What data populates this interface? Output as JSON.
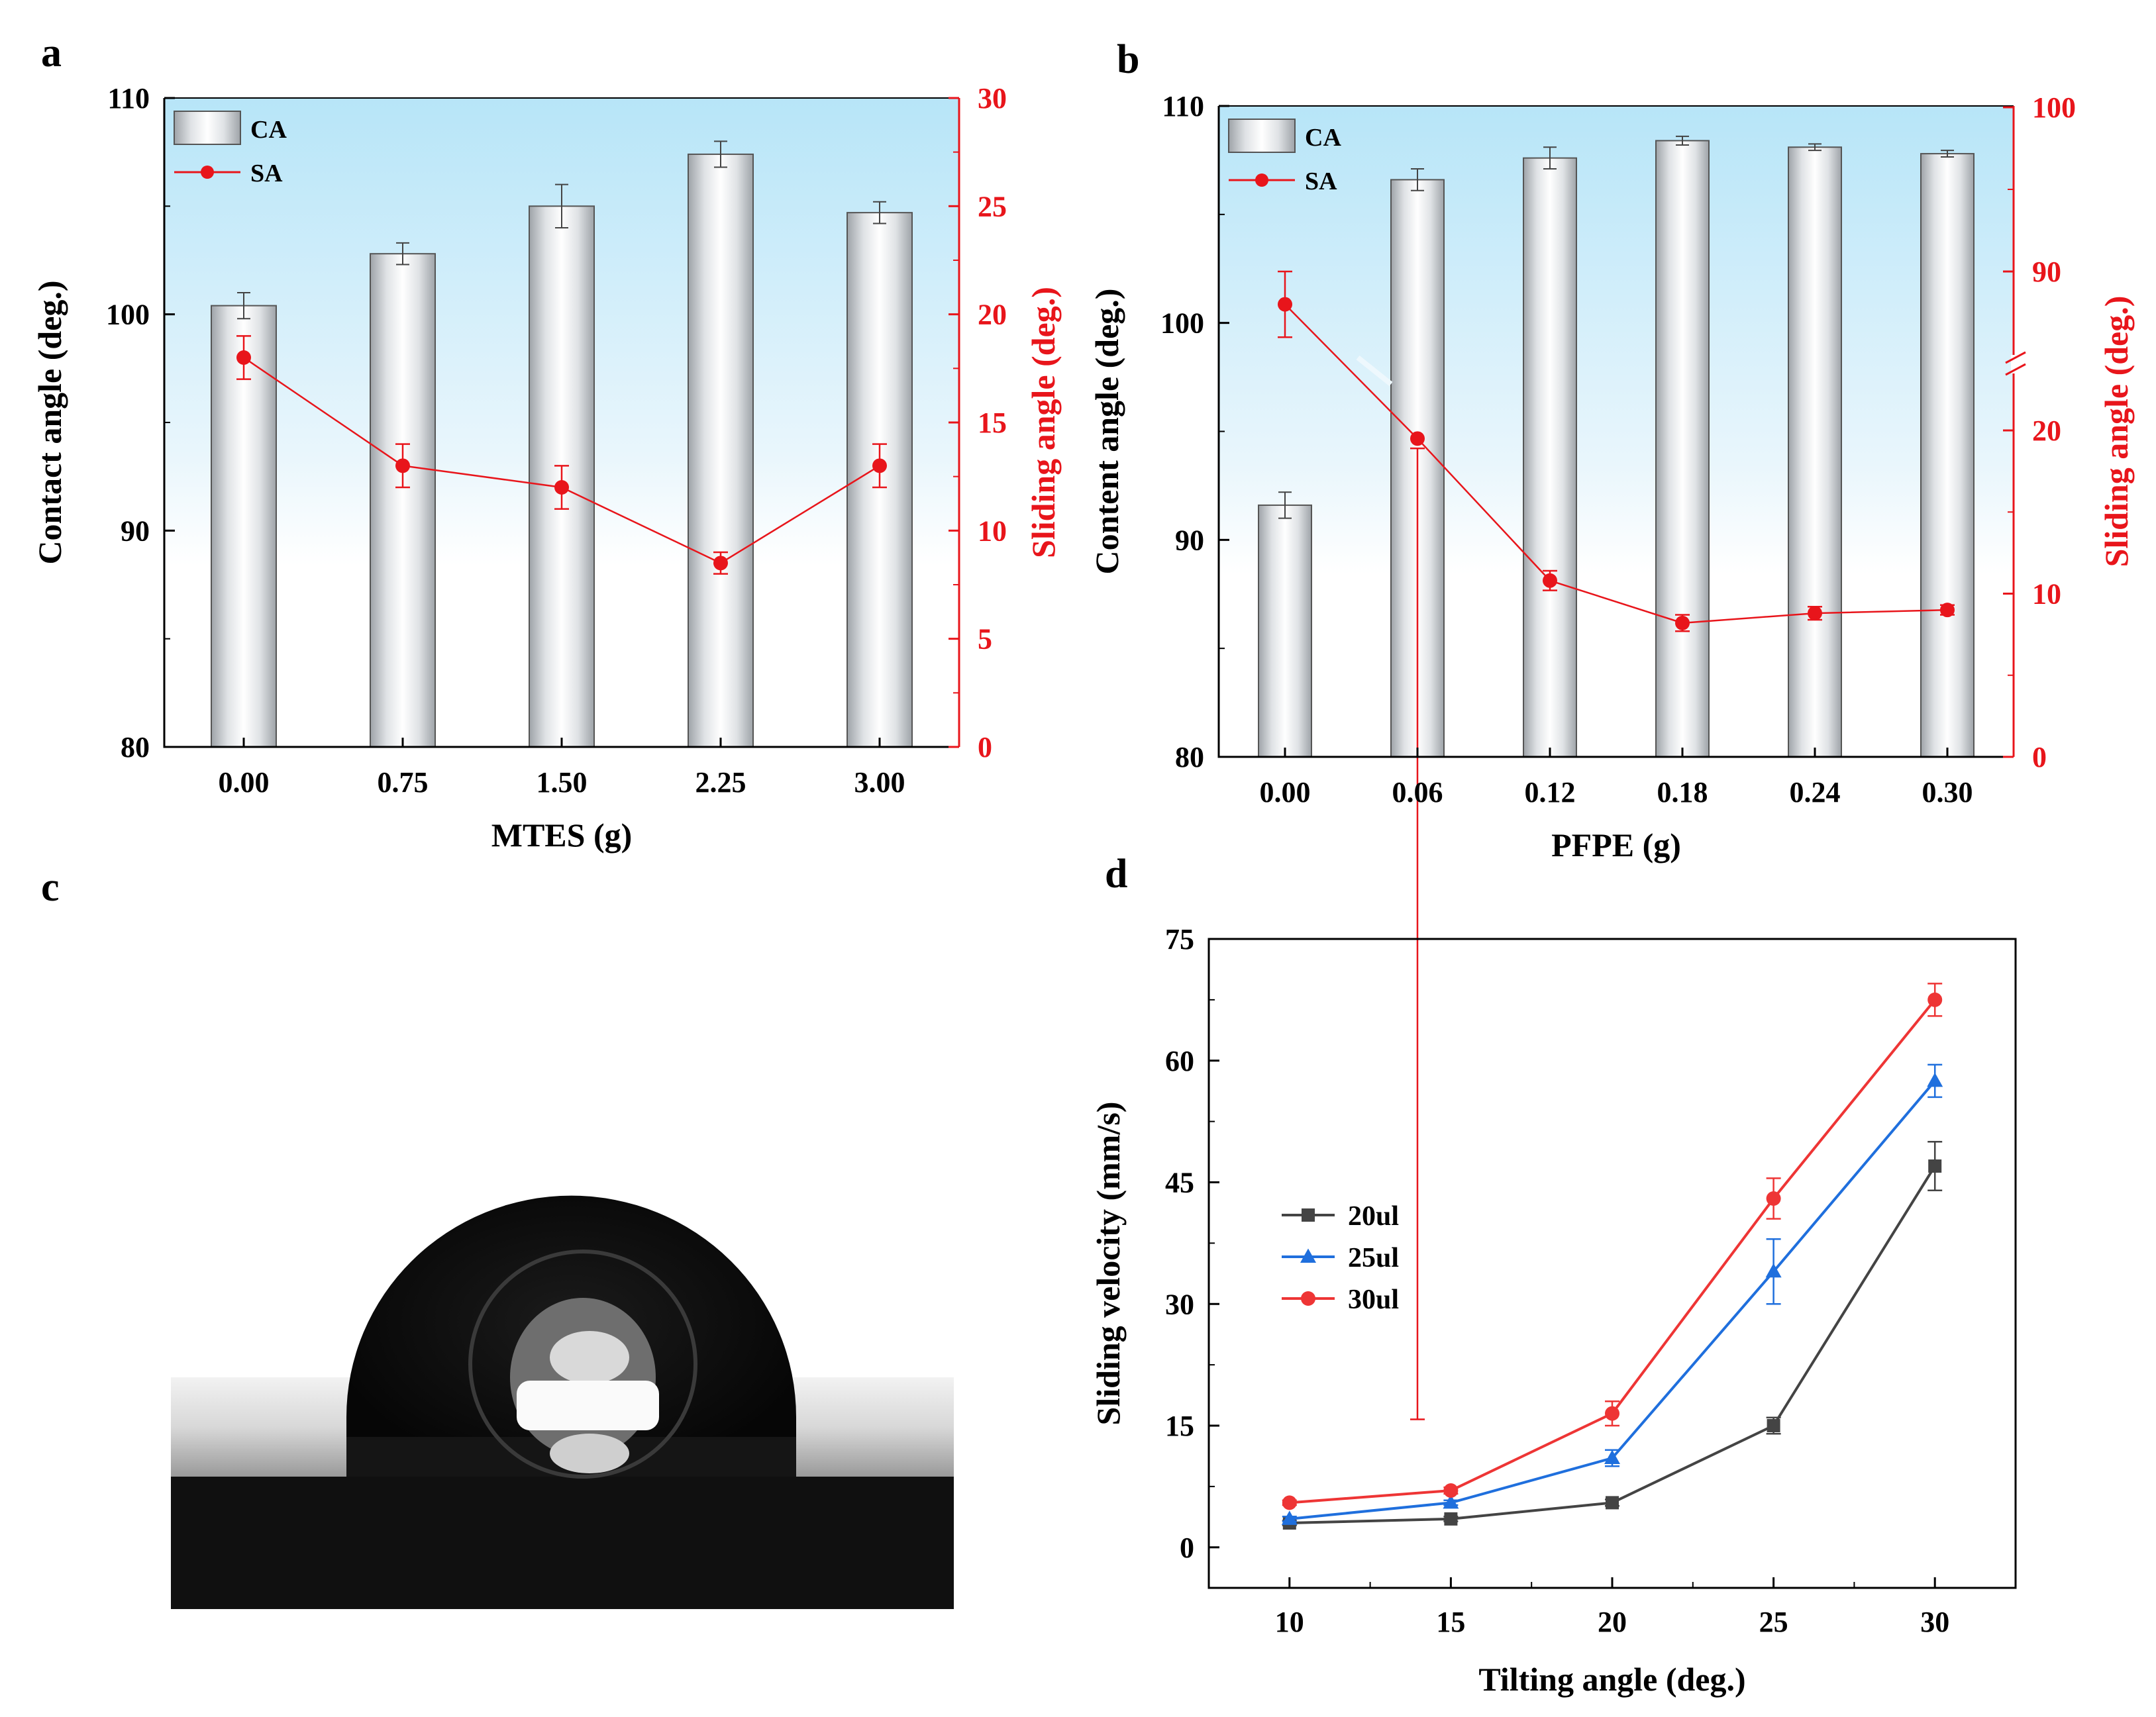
{
  "colors": {
    "ca_bar": "#d9dcdf",
    "sa_line": "#e8151b",
    "bg_top": "#b9e6f8",
    "series_20ul": "#444444",
    "series_25ul": "#1f6fdd",
    "series_30ul": "#ee3535"
  },
  "chart_data": [
    {
      "panel_label": "a",
      "type": "bar",
      "secondary_type": "line",
      "background": "light-blue-to-white gradient",
      "xlabel": "MTES (g)",
      "ylabel": "Contact angle (deg.)",
      "ylabel_right": "Sliding angle (deg.)",
      "categories": [
        "0.00",
        "0.75",
        "1.50",
        "2.25",
        "3.00"
      ],
      "ylim": [
        80,
        110
      ],
      "yticks": [
        "80",
        "90",
        "100",
        "110"
      ],
      "ylim_right": [
        0,
        30
      ],
      "yticks_right": [
        "0",
        "5",
        "10",
        "15",
        "20",
        "25",
        "30"
      ],
      "legend_position": "top-left",
      "series": [
        {
          "name": "CA",
          "axis": "left",
          "type": "bar",
          "values": [
            100.4,
            102.8,
            105.0,
            107.4,
            104.7
          ],
          "errors": [
            0.6,
            0.5,
            1.0,
            0.6,
            0.5
          ]
        },
        {
          "name": "SA",
          "axis": "right",
          "type": "line",
          "values": [
            18.0,
            13.0,
            12.0,
            8.5,
            13.0
          ],
          "errors": [
            1.0,
            1.0,
            1.0,
            0.5,
            1.0
          ]
        }
      ]
    },
    {
      "panel_label": "b",
      "type": "bar",
      "secondary_type": "line",
      "background": "light-blue-to-white gradient",
      "xlabel": "PFPE (g)",
      "ylabel": "Content angle (deg.)",
      "ylabel_right": "Sliding angle (deg.)",
      "categories": [
        "0.00",
        "0.06",
        "0.12",
        "0.18",
        "0.24",
        "0.30"
      ],
      "ylim": [
        80,
        110
      ],
      "yticks": [
        "80",
        "90",
        "100",
        "110"
      ],
      "right_axis_broken": true,
      "yticks_right": [
        "0",
        "10",
        "20",
        "90",
        "100"
      ],
      "legend_position": "top-left",
      "series": [
        {
          "name": "CA",
          "axis": "left",
          "type": "bar",
          "values": [
            91.6,
            106.6,
            107.6,
            108.4,
            108.1,
            107.8
          ],
          "errors": [
            0.6,
            0.5,
            0.5,
            0.2,
            0.15,
            0.15
          ]
        },
        {
          "name": "SA",
          "axis": "right",
          "type": "line",
          "values": [
            88.0,
            19.5,
            10.8,
            8.2,
            8.8,
            9.0
          ],
          "errors": [
            2.0,
            0.6,
            0.6,
            0.5,
            0.4,
            0.3
          ]
        }
      ]
    },
    {
      "panel_label": "c",
      "type": "image",
      "content": "water droplet on surface"
    },
    {
      "panel_label": "d",
      "type": "line",
      "xlabel": "Tilting angle (deg.)",
      "ylabel": "Sliding velocity (mm/s)",
      "x": [
        10,
        15,
        20,
        25,
        30
      ],
      "xticks": [
        "10",
        "15",
        "20",
        "25",
        "30"
      ],
      "xlim": [
        7.5,
        32.5
      ],
      "ylim": [
        -5,
        75
      ],
      "yticks": [
        "0",
        "15",
        "30",
        "45",
        "60",
        "75"
      ],
      "legend_position": "center-left",
      "series": [
        {
          "name": "20ul",
          "marker": "square",
          "values": [
            3.0,
            3.5,
            5.5,
            15.0,
            47.0
          ],
          "errors": [
            0.3,
            0.3,
            0.4,
            1.0,
            3.0
          ]
        },
        {
          "name": "25ul",
          "marker": "triangle",
          "values": [
            3.5,
            5.5,
            11.0,
            34.0,
            57.5
          ],
          "errors": [
            0.3,
            0.3,
            1.0,
            4.0,
            2.0
          ]
        },
        {
          "name": "30ul",
          "marker": "circle",
          "values": [
            5.5,
            7.0,
            16.5,
            43.0,
            67.5
          ],
          "errors": [
            0.3,
            0.4,
            1.5,
            2.5,
            2.0
          ]
        }
      ]
    }
  ]
}
